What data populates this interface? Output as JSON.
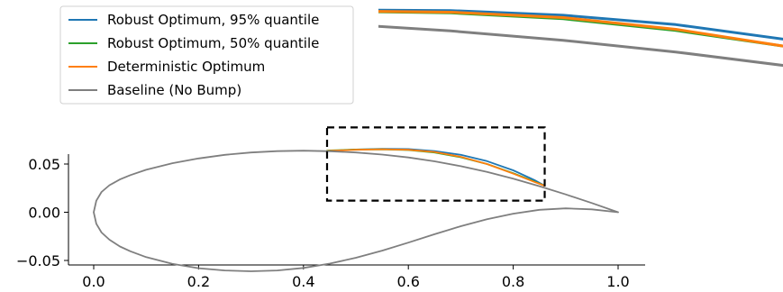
{
  "chart_data": {
    "type": "line",
    "title": "",
    "xlabel": "",
    "ylabel": "",
    "xlim": [
      -0.05,
      1.05
    ],
    "ylim": [
      -0.07,
      0.07
    ],
    "x_ticks": [
      "0.0",
      "0.2",
      "0.4",
      "0.6",
      "0.8",
      "1.0"
    ],
    "y_ticks": [
      "0.05",
      "0.00",
      "−0.05"
    ],
    "grid": false,
    "legend": {
      "placement": "top-left",
      "entries": [
        {
          "label": "Robust Optimum, 95% quantile",
          "color": "#1f77b4"
        },
        {
          "label": "Robust Optimum, 50% quantile",
          "color": "#2ca02c"
        },
        {
          "label": "Deterministic Optimum",
          "color": "#ff7f0e"
        },
        {
          "label": "Baseline (No Bump)",
          "color": "#7f7f7f"
        }
      ]
    },
    "zoom_box": {
      "x_range": [
        0.445,
        0.86
      ],
      "y_range": [
        0.012,
        0.088
      ]
    },
    "series": [
      {
        "name": "Baseline (No Bump)",
        "color": "#7f7f7f",
        "x": [
          1.0,
          0.95,
          0.9,
          0.85,
          0.8,
          0.75,
          0.7,
          0.65,
          0.6,
          0.55,
          0.5,
          0.45,
          0.4,
          0.35,
          0.3,
          0.25,
          0.2,
          0.15,
          0.1,
          0.07,
          0.05,
          0.03,
          0.015,
          0.005,
          0.0,
          0.005,
          0.015,
          0.03,
          0.05,
          0.07,
          0.1,
          0.15,
          0.2,
          0.25,
          0.3,
          0.35,
          0.4,
          0.45,
          0.5,
          0.55,
          0.6,
          0.65,
          0.7,
          0.75,
          0.8,
          0.85,
          0.9,
          0.95,
          1.0
        ],
        "y": [
          0.0,
          0.0095,
          0.0185,
          0.027,
          0.0348,
          0.0418,
          0.0478,
          0.0528,
          0.0568,
          0.0598,
          0.062,
          0.0633,
          0.0638,
          0.0634,
          0.062,
          0.0595,
          0.0558,
          0.0508,
          0.044,
          0.0385,
          0.034,
          0.028,
          0.021,
          0.012,
          0.0,
          -0.012,
          -0.021,
          -0.0285,
          -0.0355,
          -0.0405,
          -0.0465,
          -0.0535,
          -0.058,
          -0.0604,
          -0.0612,
          -0.0604,
          -0.0578,
          -0.0533,
          -0.0472,
          -0.0398,
          -0.0315,
          -0.0228,
          -0.0145,
          -0.0072,
          -0.0015,
          0.0025,
          0.004,
          0.003,
          0.0
        ]
      },
      {
        "name": "Robust Optimum, 95% quantile",
        "color": "#1f77b4",
        "x": [
          0.445,
          0.5,
          0.55,
          0.6,
          0.65,
          0.7,
          0.75,
          0.8,
          0.84,
          0.86
        ],
        "y": [
          0.0635,
          0.065,
          0.0658,
          0.0655,
          0.0635,
          0.0595,
          0.053,
          0.0435,
          0.0335,
          0.0275
        ]
      },
      {
        "name": "Robust Optimum, 50% quantile",
        "color": "#2ca02c",
        "x": [
          0.445,
          0.5,
          0.55,
          0.6,
          0.65,
          0.7,
          0.75,
          0.8,
          0.84,
          0.86
        ],
        "y": [
          0.064,
          0.065,
          0.0652,
          0.0645,
          0.062,
          0.057,
          0.05,
          0.0405,
          0.032,
          0.0275
        ]
      },
      {
        "name": "Deterministic Optimum",
        "color": "#ff7f0e",
        "x": [
          0.445,
          0.5,
          0.55,
          0.6,
          0.65,
          0.7,
          0.75,
          0.8,
          0.84,
          0.86
        ],
        "y": [
          0.0636,
          0.0648,
          0.0653,
          0.0648,
          0.0625,
          0.0575,
          0.05,
          0.04,
          0.0315,
          0.0275
        ]
      }
    ]
  }
}
